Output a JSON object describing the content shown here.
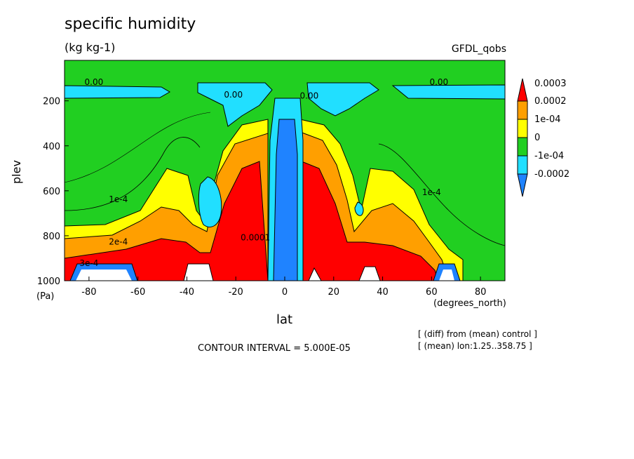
{
  "chart_data": {
    "type": "heatmap",
    "title": "specific humidity",
    "units": "(kg kg-1)",
    "dataset": "GFDL_qobs",
    "xlabel": "lat",
    "xunit": "(degrees_north)",
    "ylabel": "plev",
    "yunit": "(Pa)",
    "contour_interval_text": "CONTOUR INTERVAL = 5.000E-05",
    "notes": [
      "[ (diff) from (mean) control ]",
      "[ (mean) lon:1.25..358.75 ]"
    ],
    "xlim": [
      -90,
      90
    ],
    "ylim": [
      1000,
      20
    ],
    "y_inverted": true,
    "xticks": [
      "-80",
      "-60",
      "-40",
      "-20",
      "0",
      "20",
      "40",
      "60",
      "80"
    ],
    "yticks": [
      "200",
      "400",
      "600",
      "800",
      "1000"
    ],
    "colorbar": {
      "labels": [
        "0.0003",
        "0.0002",
        "1e-04",
        "0",
        "-1e-04",
        "-0.0002"
      ],
      "colors": [
        "#ff0000",
        "#ff9f00",
        "#ffff00",
        "#21cf21",
        "#21dfff",
        "#1f83ff"
      ]
    },
    "contour_labels": [
      {
        "text": "0.00",
        "x": -78,
        "y": 130
      },
      {
        "text": "0.00",
        "x": -21,
        "y": 185
      },
      {
        "text": "0.00",
        "x": 10,
        "y": 190
      },
      {
        "text": "0.00",
        "x": 63,
        "y": 130
      },
      {
        "text": "1e-4",
        "x": -68,
        "y": 650
      },
      {
        "text": "2e-4",
        "x": -68,
        "y": 840
      },
      {
        "text": "3e-4",
        "x": -80,
        "y": 935
      },
      {
        "text": "1e-4",
        "x": 60,
        "y": 620
      },
      {
        "text": "0.0001",
        "x": -12,
        "y": 820
      }
    ]
  }
}
